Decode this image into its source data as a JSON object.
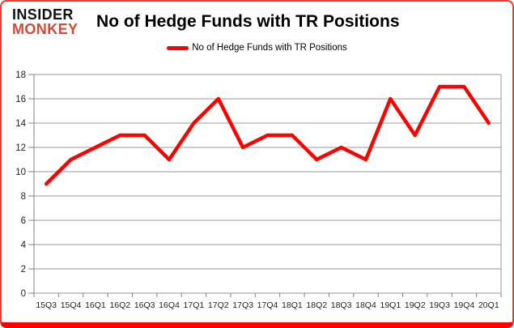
{
  "brand": {
    "line1": "INSIDER",
    "line2": "MONKEY",
    "accent_color": "#d04a35"
  },
  "header": {
    "title": "No of Hedge Funds with TR Positions"
  },
  "legend": {
    "label": "No of Hedge Funds with TR Positions",
    "line_color": "#ff0000"
  },
  "chart_data": {
    "type": "line",
    "title": "No of Hedge Funds with TR Positions",
    "categories": [
      "15Q3",
      "15Q4",
      "16Q1",
      "16Q2",
      "16Q3",
      "16Q4",
      "17Q1",
      "17Q2",
      "17Q3",
      "17Q4",
      "18Q1",
      "18Q2",
      "18Q3",
      "18Q4",
      "19Q1",
      "19Q2",
      "19Q3",
      "19Q4",
      "20Q1"
    ],
    "series": [
      {
        "name": "No of Hedge Funds with TR Positions",
        "color": "#ff0000",
        "values": [
          9,
          11,
          12,
          13,
          13,
          11,
          14,
          16,
          12,
          13,
          13,
          11,
          12,
          11,
          16,
          13,
          17,
          17,
          14
        ]
      }
    ],
    "xlabel": "",
    "ylabel": "",
    "ylim": [
      0,
      18
    ],
    "ytick_step": 2,
    "grid": true,
    "legend_position": "top-center",
    "gridline_color": "#999999",
    "axis_color": "#808080",
    "tick_label_color": "#1f1f1f",
    "frame_border_color": "#fe0000"
  }
}
